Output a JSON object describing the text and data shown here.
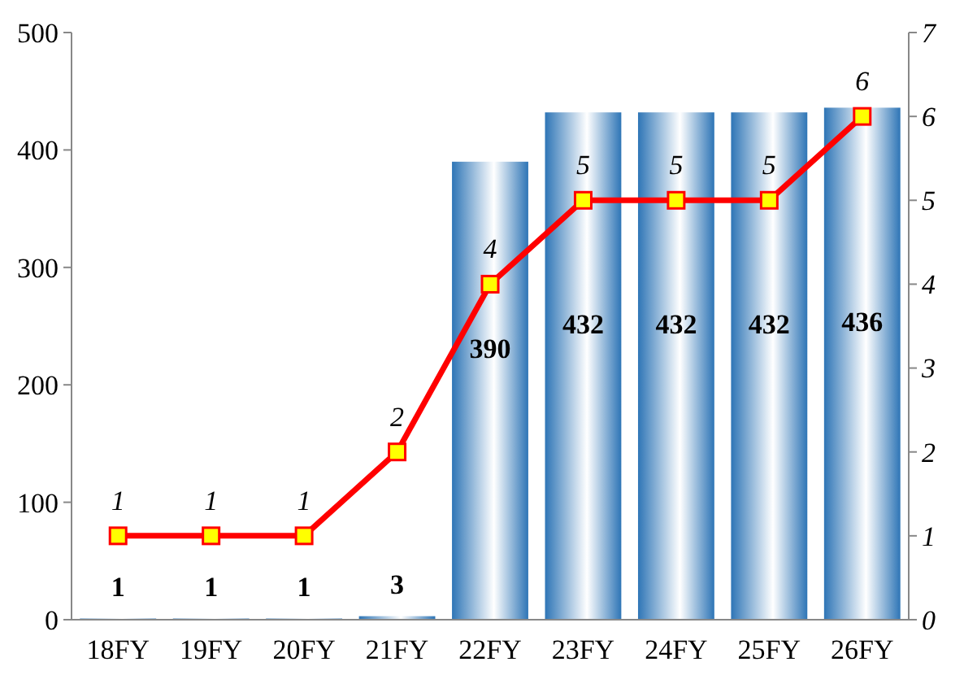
{
  "chart_data": {
    "type": "bar",
    "categories": [
      "18FY",
      "19FY",
      "20FY",
      "21FY",
      "22FY",
      "23FY",
      "24FY",
      "25FY",
      "26FY"
    ],
    "series": [
      {
        "color": "#2e75b6",
        "values": [
          1,
          1,
          1,
          3,
          390,
          432,
          432,
          432,
          436
        ]
      },
      {
        "type": "line",
        "axis": "y2",
        "color": "#ff0000",
        "values": [
          1,
          1,
          1,
          2,
          4,
          5,
          5,
          5,
          6
        ]
      }
    ],
    "ylim": [
      0,
      500
    ],
    "yticks": [
      0,
      100,
      200,
      300,
      400,
      500
    ],
    "y2lim": [
      0,
      7
    ],
    "y2ticks": [
      0,
      1,
      2,
      3,
      4,
      5,
      6,
      7
    ],
    "data_labels": true,
    "marker": "square",
    "line_style": "solid",
    "grid": false
  }
}
